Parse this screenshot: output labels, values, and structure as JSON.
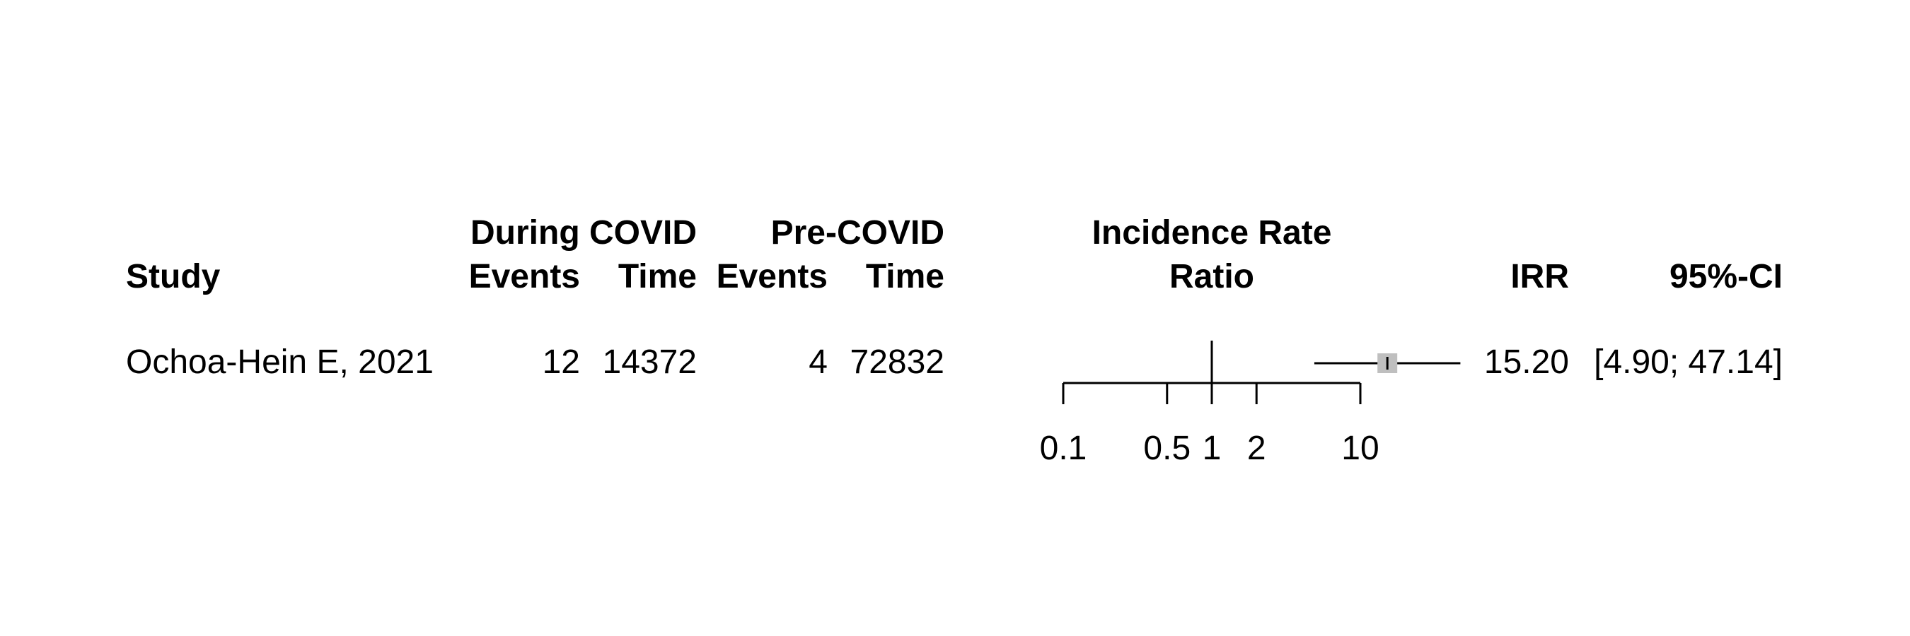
{
  "chart_data": {
    "type": "forest",
    "columns": {
      "study": "Study",
      "during_covid_group": "During COVID",
      "during_events": "Events",
      "during_time": "Time",
      "pre_covid_group": "Pre-COVID",
      "pre_events": "Events",
      "pre_time": "Time",
      "plot_title_line1": "Incidence Rate",
      "plot_title_line2": "Ratio",
      "irr": "IRR",
      "ci": "95%-CI"
    },
    "studies": [
      {
        "label": "Ochoa-Hein E, 2021",
        "during_events": "12",
        "during_time": "14372",
        "pre_events": "4",
        "pre_time": "72832",
        "irr_text": "15.20",
        "ci_text": "[4.90; 47.14]",
        "irr": 15.2,
        "ci_lower": 4.9,
        "ci_upper": 47.14
      }
    ],
    "x_scale": "log",
    "x_ticks": [
      {
        "value": 0.1,
        "label": "0.1"
      },
      {
        "value": 0.5,
        "label": "0.5"
      },
      {
        "value": 1,
        "label": "1"
      },
      {
        "value": 2,
        "label": "2"
      },
      {
        "value": 10,
        "label": "10"
      }
    ],
    "xlim": [
      0.1,
      10
    ],
    "reference_line": 1,
    "marker_color": "#bfbfbf",
    "line_color": "#000000"
  }
}
